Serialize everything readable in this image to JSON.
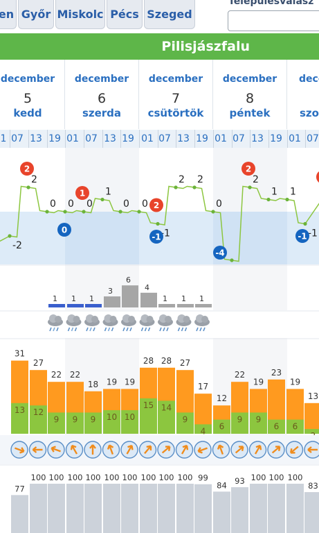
{
  "tabs": [
    "en",
    "Győr",
    "Miskolc",
    "Pécs",
    "Szeged"
  ],
  "settlement_search": {
    "label": "Településválasz",
    "value": ""
  },
  "place": "Pilisjászfalu",
  "days": [
    {
      "month": "december",
      "day": "5",
      "weekday": "kedd"
    },
    {
      "month": "december",
      "day": "6",
      "weekday": "szerda"
    },
    {
      "month": "december",
      "day": "7",
      "weekday": "csütörtök"
    },
    {
      "month": "december",
      "day": "8",
      "weekday": "péntek"
    },
    {
      "month": "dece",
      "day": "",
      "weekday": "szo"
    }
  ],
  "hour_labels": [
    "1",
    "07",
    "13",
    "19",
    "01",
    "07",
    "13",
    "19",
    "01",
    "07",
    "13",
    "19",
    "01",
    "07",
    "13",
    "19",
    "01",
    "07"
  ],
  "temperature": {
    "labels": [
      -2,
      2,
      0,
      0,
      0,
      1,
      0,
      0,
      -1,
      2,
      2,
      0,
      -4,
      2,
      1,
      1,
      -1
    ],
    "max_badges": [
      2,
      1,
      2,
      2
    ],
    "min_badges": [
      0,
      -1,
      -4,
      -1
    ]
  },
  "precipitation": {
    "values": [
      1,
      1,
      1,
      3,
      6,
      4,
      1,
      1,
      1
    ],
    "snow_color": "#3a5fcd",
    "rain_color": "#a6a6a6"
  },
  "weather_icons": [
    "sleet-cloud-icon",
    "sleet-cloud-icon",
    "sleet-cloud-icon",
    "sleet-cloud-icon",
    "rain-cloud-icon",
    "rain-cloud-icon",
    "rain-cloud-icon",
    "rain-cloud-icon",
    "rain-cloud-icon"
  ],
  "wind": {
    "gust": [
      31,
      27,
      22,
      22,
      18,
      19,
      19,
      28,
      28,
      27,
      17,
      12,
      22,
      19,
      23,
      19,
      13
    ],
    "mean": [
      13,
      12,
      9,
      9,
      9,
      10,
      10,
      15,
      14,
      9,
      4,
      6,
      9,
      9,
      6,
      6,
      2
    ],
    "gust_color": "#ff9a1f",
    "mean_color": "#8cc63f"
  },
  "wind_direction_icons": 18,
  "cloud_cover": [
    77,
    100,
    100,
    100,
    100,
    100,
    100,
    100,
    100,
    100,
    99,
    84,
    93,
    100,
    100,
    100,
    83
  ],
  "colors": {
    "accent": "#5eb649",
    "link": "#2a6fc0",
    "badge_max": "#e8442b",
    "badge_min": "#1565c0"
  }
}
